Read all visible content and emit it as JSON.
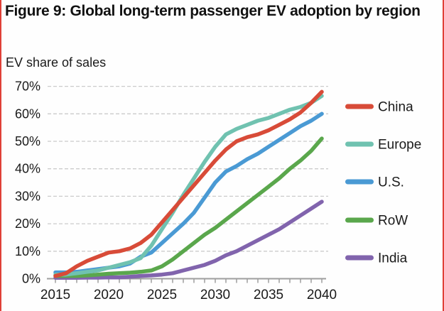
{
  "page": {
    "edge_color": "#e04038",
    "background": "#fefefe"
  },
  "chart_data": {
    "type": "line",
    "title": "Figure 9: Global long-term passenger EV adoption by region",
    "ylabel": "EV share of sales",
    "xlabel": "",
    "x_start": 2015,
    "x_end": 2040,
    "x_tick_labels": [
      "2015",
      "2020",
      "2025",
      "2030",
      "2035",
      "2040"
    ],
    "y_tick_labels": [
      "0%",
      "10%",
      "20%",
      "30%",
      "40%",
      "50%",
      "60%",
      "70%"
    ],
    "ylim": [
      0,
      70
    ],
    "grid": "horizontal-dashed",
    "legend_position": "right",
    "colors": {
      "grid": "#cbcbcb",
      "axis": "#9e9e9e",
      "text": "#1a1a1a"
    },
    "series": [
      {
        "name": "China",
        "color": "#d84b38",
        "values": [
          1,
          2,
          4.5,
          6.5,
          8,
          9.5,
          10,
          11,
          13,
          16,
          20.5,
          25,
          29.5,
          34,
          38.5,
          43,
          47,
          50,
          51.5,
          52.5,
          54,
          56,
          58,
          60.5,
          64,
          68
        ]
      },
      {
        "name": "Europe",
        "color": "#70c2b0",
        "values": [
          1.5,
          1.5,
          2,
          2.5,
          3,
          4,
          5,
          6,
          7.5,
          12,
          18,
          24,
          30.5,
          36.5,
          42.5,
          48,
          52.5,
          54.5,
          56,
          57.5,
          58.5,
          60,
          61.5,
          62.5,
          64,
          66.5
        ]
      },
      {
        "name": "U.S.",
        "color": "#4a9ad4",
        "values": [
          2.3,
          2.3,
          2.5,
          3,
          3.5,
          4,
          4.5,
          5.5,
          8,
          9.5,
          13,
          16.5,
          20,
          24,
          29.5,
          35,
          39,
          41,
          43.5,
          45.5,
          48,
          50.5,
          53,
          55.5,
          57.5,
          60
        ]
      },
      {
        "name": "RoW",
        "color": "#5aa74c",
        "values": [
          1,
          1,
          1,
          1.2,
          1.5,
          1.8,
          2,
          2.2,
          2.5,
          3,
          4.5,
          7,
          10,
          13,
          16,
          18.5,
          21.5,
          24.5,
          27.5,
          30.5,
          33.5,
          36.5,
          40,
          43,
          46.5,
          51
        ]
      },
      {
        "name": "India",
        "color": "#8164ad",
        "values": [
          0.3,
          0.3,
          0.3,
          0.4,
          0.4,
          0.5,
          0.5,
          0.7,
          1,
          1.2,
          1.5,
          2,
          3,
          4,
          5,
          6.5,
          8.5,
          10,
          12,
          14,
          16,
          18,
          20.5,
          23,
          25.5,
          28
        ]
      }
    ]
  }
}
